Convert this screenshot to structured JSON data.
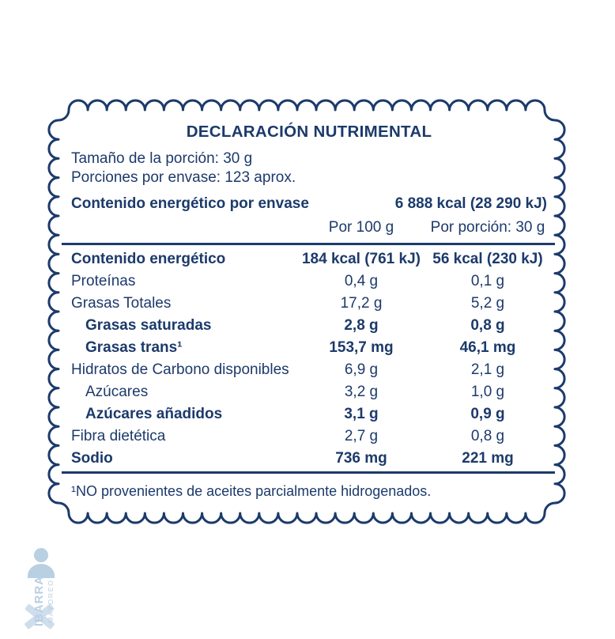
{
  "label": {
    "title": "DECLARACIÓN NUTRIMENTAL",
    "serving_size": "Tamaño de la porción: 30 g",
    "servings_per_container": "Porciones por envase: 123 aprox.",
    "energy_per_container_label": "Contenido energético por envase",
    "energy_per_container_value": "6 888 kcal (28 290 kJ)",
    "col1_header": "Por 100 g",
    "col2_header": "Por porción: 30 g",
    "rows": [
      {
        "name": "Contenido energético",
        "per100": "184 kcal (761 kJ)",
        "portion": "56 kcal (230 kJ)",
        "bold": true,
        "indent": false
      },
      {
        "name": "Proteínas",
        "per100": "0,4 g",
        "portion": "0,1 g",
        "bold": false,
        "indent": false
      },
      {
        "name": "Grasas Totales",
        "per100": "17,2 g",
        "portion": "5,2 g",
        "bold": false,
        "indent": false
      },
      {
        "name": "Grasas saturadas",
        "per100": "2,8 g",
        "portion": "0,8 g",
        "bold": true,
        "indent": true
      },
      {
        "name": "Grasas trans¹",
        "per100": "153,7 mg",
        "portion": "46,1 mg",
        "bold": true,
        "indent": true
      },
      {
        "name": "Hidratos de Carbono disponibles",
        "per100": "6,9 g",
        "portion": "2,1 g",
        "bold": false,
        "indent": false
      },
      {
        "name": "Azúcares",
        "per100": "3,2 g",
        "portion": "1,0 g",
        "bold": false,
        "indent": true
      },
      {
        "name": "Azúcares añadidos",
        "per100": "3,1 g",
        "portion": "0,9 g",
        "bold": true,
        "indent": true
      },
      {
        "name": "Fibra dietética",
        "per100": "2,7 g",
        "portion": "0,8 g",
        "bold": false,
        "indent": false
      },
      {
        "name": "Sodio",
        "per100": "736 mg",
        "portion": "221 mg",
        "bold": true,
        "indent": false
      }
    ],
    "footnote": "¹NO provenientes de aceites parcialmente hidrogenados."
  },
  "watermark": {
    "brand": "IBARRA",
    "sub": "MAYOREO"
  },
  "colors": {
    "navy": "#1c3a6b",
    "watermark": "#b9cfe2",
    "watermark_secondary": "#cfdeec"
  }
}
